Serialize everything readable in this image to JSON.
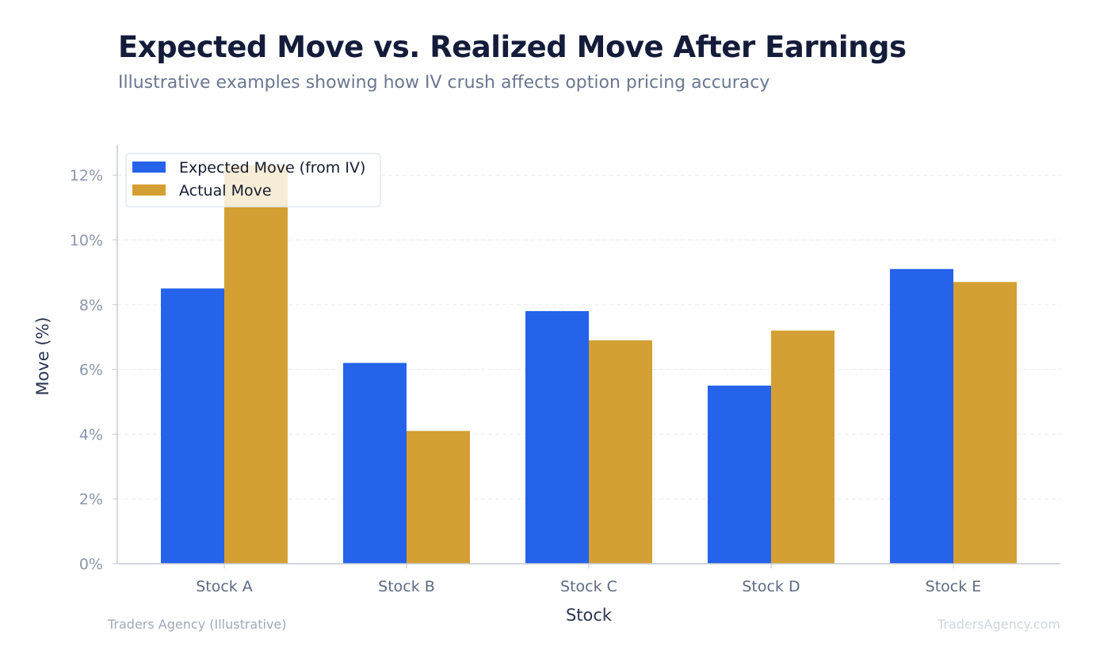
{
  "title": "Expected Move vs. Realized Move After Earnings",
  "subtitle": "Illustrative examples showing how IV crush affects option pricing accuracy",
  "footer": {
    "source": "Traders Agency (Illustrative)",
    "watermark": "TradersAgency.com"
  },
  "chart_data": {
    "type": "bar",
    "title": "Expected Move vs. Realized Move After Earnings",
    "xlabel": "Stock",
    "ylabel": "Move (%)",
    "categories": [
      "Stock A",
      "Stock B",
      "Stock C",
      "Stock D",
      "Stock E"
    ],
    "series": [
      {
        "name": "Expected Move (from IV)",
        "color": "#2563eb",
        "values": [
          8.5,
          6.2,
          7.8,
          5.5,
          9.1
        ]
      },
      {
        "name": "Actual Move",
        "color": "#d4a033",
        "values": [
          12.3,
          4.1,
          6.9,
          7.2,
          8.7
        ]
      }
    ],
    "ylim": [
      0,
      12.9
    ],
    "yticks": [
      0,
      2,
      4,
      6,
      8,
      10,
      12
    ],
    "ytick_labels": [
      "0%",
      "2%",
      "4%",
      "6%",
      "8%",
      "10%",
      "12%"
    ],
    "grid": true,
    "legend_position": "top-left"
  }
}
